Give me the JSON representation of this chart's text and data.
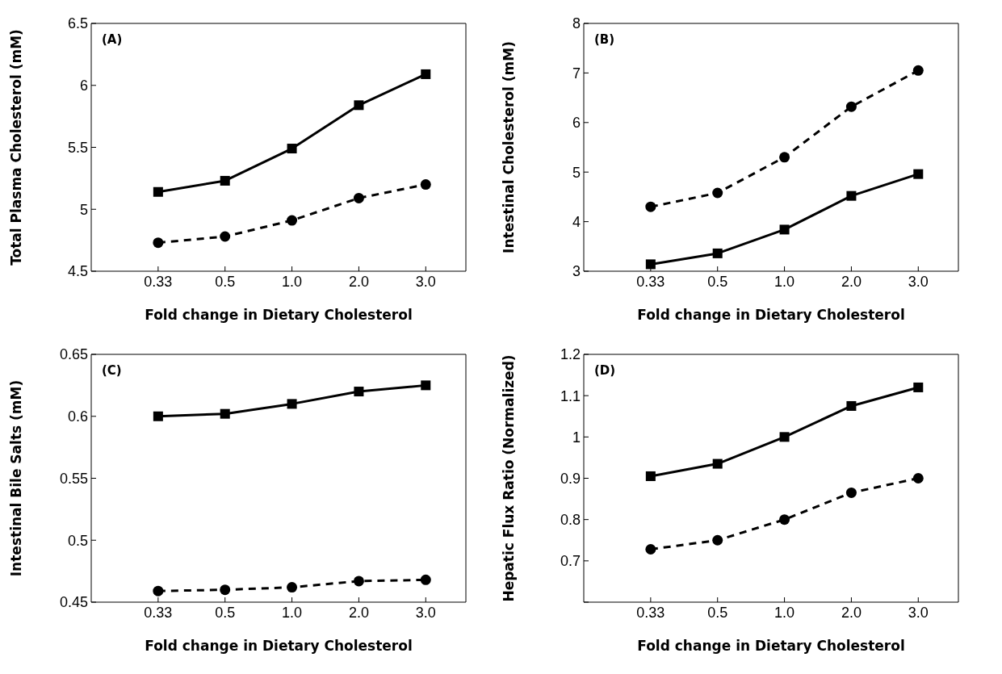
{
  "chart_data": [
    {
      "type": "line",
      "xlabel": "Fold change in Dietary Cholesterol",
      "ylabel": "Total Plasma Cholesterol (mM)",
      "annotations": [
        "(A)"
      ],
      "categories": [
        "0.33",
        "0.5",
        "1.0",
        "2.0",
        "3.0"
      ],
      "ylim": [
        4.5,
        6.5
      ],
      "yticks": [
        4.5,
        5,
        5.5,
        6,
        6.5
      ],
      "series": [
        {
          "color": "#000000",
          "marker": "square",
          "line_style": "solid",
          "values": [
            5.14,
            5.23,
            5.49,
            5.84,
            6.09
          ]
        },
        {
          "color": "#000000",
          "marker": "circle",
          "line_style": "dashed",
          "values": [
            4.73,
            4.78,
            4.91,
            5.09,
            5.2
          ]
        }
      ]
    },
    {
      "type": "line",
      "xlabel": "Fold change in Dietary Cholesterol",
      "ylabel": "Intestinal Cholesterol (mM)",
      "annotations": [
        "(B)"
      ],
      "categories": [
        "0.33",
        "0.5",
        "1.0",
        "2.0",
        "3.0"
      ],
      "ylim": [
        3,
        8
      ],
      "yticks": [
        3,
        4,
        5,
        6,
        7,
        8
      ],
      "series": [
        {
          "color": "#000000",
          "marker": "circle",
          "line_style": "dashed",
          "values": [
            4.3,
            4.58,
            5.3,
            6.32,
            7.05
          ]
        },
        {
          "color": "#000000",
          "marker": "square",
          "line_style": "solid",
          "values": [
            3.14,
            3.36,
            3.84,
            4.52,
            4.96
          ]
        }
      ]
    },
    {
      "type": "line",
      "xlabel": "Fold change in Dietary Cholesterol",
      "ylabel": "Intestinal Bile Salts (mM)",
      "annotations": [
        "(C)"
      ],
      "categories": [
        "0.33",
        "0.5",
        "1.0",
        "2.0",
        "3.0"
      ],
      "ylim": [
        0.45,
        0.65
      ],
      "yticks": [
        0.45,
        0.5,
        0.55,
        0.6,
        0.65
      ],
      "series": [
        {
          "color": "#000000",
          "marker": "square",
          "line_style": "solid",
          "values": [
            0.6,
            0.602,
            0.61,
            0.62,
            0.625
          ]
        },
        {
          "color": "#000000",
          "marker": "circle",
          "line_style": "dashed",
          "values": [
            0.459,
            0.46,
            0.462,
            0.467,
            0.468
          ]
        }
      ]
    },
    {
      "type": "line",
      "xlabel": "Fold change in Dietary Cholesterol",
      "ylabel": "Hepatic Flux Ratio (Normalized)",
      "annotations": [
        "(D)"
      ],
      "categories": [
        "0.33",
        "0.5",
        "1.0",
        "2.0",
        "3.0"
      ],
      "ylim": [
        0.6,
        1.2
      ],
      "yticks": [
        {
          "value": 0.6,
          "label": null
        },
        0.7,
        0.8,
        0.9,
        1,
        1.1,
        1.2
      ],
      "series": [
        {
          "color": "#000000",
          "marker": "square",
          "line_style": "solid",
          "values": [
            0.905,
            0.935,
            1.0,
            1.075,
            1.12
          ]
        },
        {
          "color": "#000000",
          "marker": "circle",
          "line_style": "dashed",
          "values": [
            0.728,
            0.75,
            0.8,
            0.865,
            0.9
          ]
        }
      ]
    }
  ]
}
